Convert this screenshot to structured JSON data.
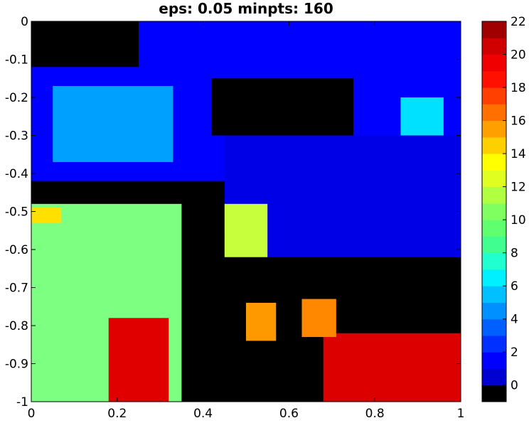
{
  "chart_data": {
    "type": "heatmap",
    "title": "eps: 0.05 minpts: 160",
    "xlabel": "",
    "ylabel": "",
    "xlim": [
      0,
      1
    ],
    "ylim": [
      -1,
      0
    ],
    "x_ticks": [
      0,
      0.2,
      0.4,
      0.6,
      0.8,
      1
    ],
    "x_tick_labels": [
      "0",
      "0.2",
      "0.4",
      "0.6",
      "0.8",
      "1"
    ],
    "y_ticks": [
      0,
      -0.1,
      -0.2,
      -0.3,
      -0.4,
      -0.5,
      -0.6,
      -0.7,
      -0.8,
      -0.9,
      -1
    ],
    "y_tick_labels": [
      "0",
      "-0.1",
      "-0.2",
      "-0.3",
      "-0.4",
      "-0.5",
      "-0.6",
      "-0.7",
      "-0.8",
      "-0.9",
      "-1"
    ],
    "grid": false,
    "colorbar": {
      "range": [
        -1,
        22
      ],
      "levels": 23,
      "colormap": [
        "#000000",
        "#0000d0",
        "#0000ff",
        "#0030ff",
        "#0060ff",
        "#0090ff",
        "#00c0ff",
        "#00f0ff",
        "#20ffd0",
        "#40ff90",
        "#60ff70",
        "#80ff60",
        "#b0ff40",
        "#e0ff20",
        "#ffff00",
        "#ffd000",
        "#ffa000",
        "#ff7000",
        "#ff4000",
        "#ff1000",
        "#f00000",
        "#d00000",
        "#a00000"
      ],
      "ticks": [
        0,
        2,
        4,
        6,
        8,
        10,
        12,
        14,
        16,
        18,
        20,
        22
      ],
      "tick_labels": [
        "0",
        "2",
        "4",
        "6",
        "8",
        "10",
        "12",
        "14",
        "16",
        "18",
        "20",
        "22"
      ]
    },
    "regions": [
      {
        "cluster": 1,
        "color": "#0000ff",
        "x": [
          0.0,
          1.0
        ],
        "y": [
          -0.55,
          0.0
        ]
      },
      {
        "cluster": 2,
        "color": "#0000e6",
        "x": [
          0.45,
          1.0
        ],
        "y": [
          -0.78,
          -0.3
        ]
      },
      {
        "cluster": 0,
        "color": "#000000",
        "x": [
          0.0,
          0.25
        ],
        "y": [
          -0.12,
          0.0
        ]
      },
      {
        "cluster": 0,
        "color": "#000000",
        "x": [
          0.0,
          0.45
        ],
        "y": [
          -0.58,
          -0.42
        ]
      },
      {
        "cluster": 0,
        "color": "#000000",
        "x": [
          0.25,
          1.0
        ],
        "y": [
          -1.0,
          -0.62
        ]
      },
      {
        "cluster": 0,
        "color": "#000000",
        "x": [
          0.42,
          0.75
        ],
        "y": [
          -0.3,
          -0.15
        ]
      },
      {
        "cluster": 10,
        "color": "#7dff82",
        "x": [
          0.0,
          0.35
        ],
        "y": [
          -1.0,
          -0.48
        ]
      },
      {
        "cluster": 21,
        "color": "#e00000",
        "x": [
          0.18,
          0.32
        ],
        "y": [
          -1.0,
          -0.78
        ]
      },
      {
        "cluster": 20,
        "color": "#dd0000",
        "x": [
          0.68,
          1.0
        ],
        "y": [
          -1.0,
          -0.82
        ]
      },
      {
        "cluster": 16,
        "color": "#ff9900",
        "x": [
          0.5,
          0.57
        ],
        "y": [
          -0.84,
          -0.74
        ]
      },
      {
        "cluster": 16,
        "color": "#ff8800",
        "x": [
          0.63,
          0.71
        ],
        "y": [
          -0.83,
          -0.73
        ]
      },
      {
        "cluster": 12,
        "color": "#c8ff3c",
        "x": [
          0.45,
          0.55
        ],
        "y": [
          -0.62,
          -0.48
        ]
      },
      {
        "cluster": 14,
        "color": "#ffe000",
        "x": [
          0.0,
          0.07
        ],
        "y": [
          -0.53,
          -0.49
        ]
      },
      {
        "cluster": 6,
        "color": "#00a0ff",
        "x": [
          0.05,
          0.33
        ],
        "y": [
          -0.37,
          -0.17
        ]
      },
      {
        "cluster": 7,
        "color": "#00e0ff",
        "x": [
          0.86,
          0.96
        ],
        "y": [
          -0.3,
          -0.2
        ]
      }
    ]
  }
}
